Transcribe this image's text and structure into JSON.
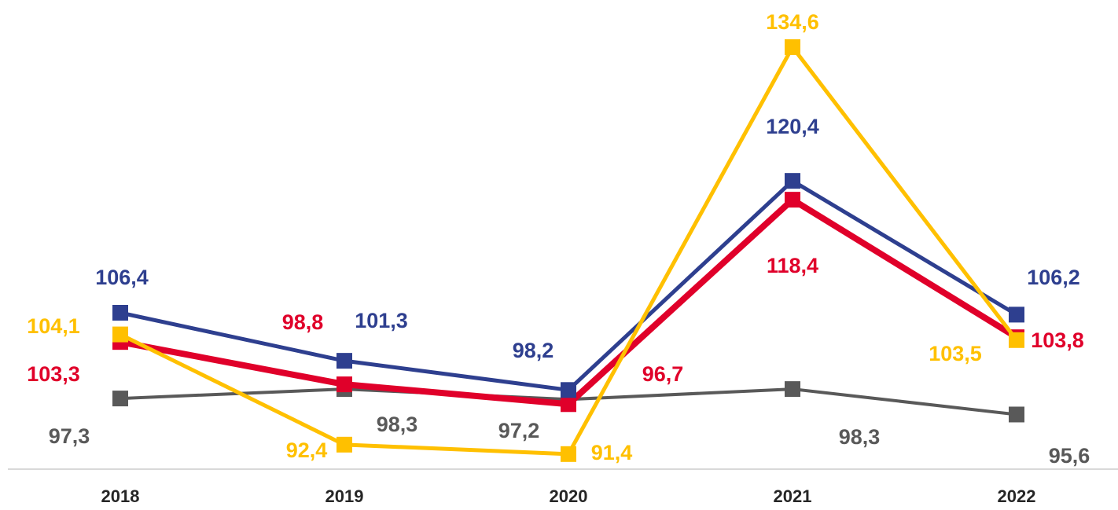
{
  "chart_data": {
    "type": "line",
    "categories": [
      "2018",
      "2019",
      "2020",
      "2021",
      "2022"
    ],
    "ylim": [
      89.8,
      139.6
    ],
    "series": [
      {
        "color": "#595959",
        "values": [
          97.3,
          98.3,
          97.2,
          98.3,
          95.6
        ],
        "value_labels": [
          "97,3",
          "98,3",
          "97,2",
          "98,3",
          "95,6"
        ]
      },
      {
        "color": "#e0002a",
        "values": [
          103.3,
          98.8,
          96.7,
          118.4,
          103.8
        ],
        "value_labels": [
          "103,3",
          "98,8",
          "96,7",
          "118,4",
          "103,8"
        ]
      },
      {
        "color": "#2e3f8f",
        "values": [
          106.4,
          101.3,
          98.2,
          120.4,
          106.2
        ],
        "value_labels": [
          "106,4",
          "101,3",
          "98,2",
          "120,4",
          "106,2"
        ]
      },
      {
        "color": "#ffc000",
        "values": [
          104.1,
          92.4,
          91.4,
          134.6,
          103.5
        ],
        "value_labels": [
          "104,1",
          "92,4",
          "91,4",
          "134,6",
          "103,5"
        ]
      }
    ]
  }
}
